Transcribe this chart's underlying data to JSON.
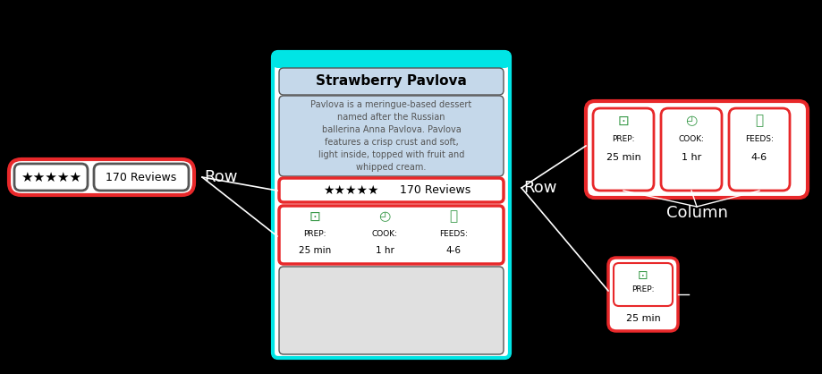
{
  "bg_color": "#000000",
  "title": "Strawberry Pavlova",
  "description": "Pavlova is a meringue-based dessert\nnamed after the Russian\nballerina Anna Pavlova. Pavlova\nfeatures a crisp crust and soft,\nlight inside, topped with fruit and\nwhipped cream.",
  "stars": "★★★★★",
  "reviews": "170 Reviews",
  "prep_label": "PREP:",
  "cook_label": "COOK:",
  "feeds_label": "FEEDS:",
  "prep_val": "25 min",
  "cook_val": "1 hr",
  "feeds_val": "4-6",
  "row_label": "Row",
  "column_label": "Column",
  "red": "#e8282a",
  "cyan": "#00e5e5",
  "green": "#3a9a4a",
  "light_blue_bg": "#c5d8ea",
  "white": "#ffffff",
  "dark_gray": "#555555",
  "black": "#000000",
  "gray_placeholder": "#e0e0e0"
}
